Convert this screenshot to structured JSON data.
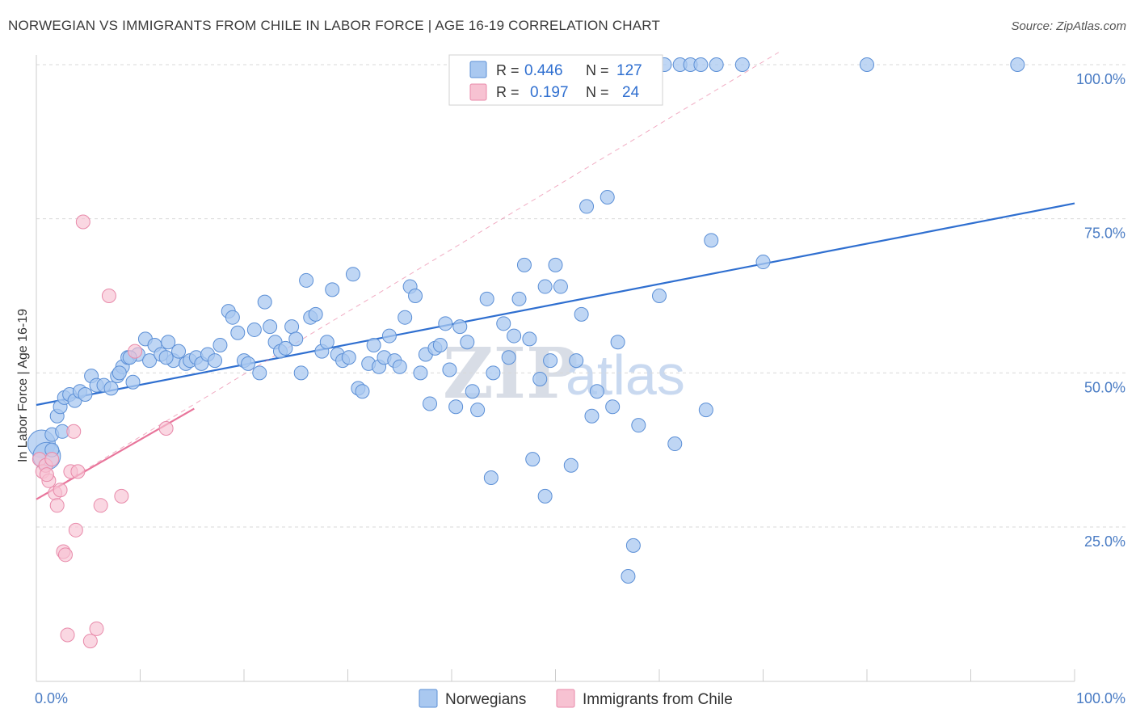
{
  "title": "NORWEGIAN VS IMMIGRANTS FROM CHILE IN LABOR FORCE | AGE 16-19 CORRELATION CHART",
  "source": "Source: ZipAtlas.com",
  "watermark": {
    "zip": "ZIP",
    "atlas": "atlas"
  },
  "colors": {
    "blue_fill": "#a9c8f0",
    "blue_stroke": "#5b8fd6",
    "blue_line": "#2f6fd0",
    "pink_fill": "#f7c2d2",
    "pink_stroke": "#e88aaa",
    "pink_line": "#e8759b",
    "grid": "#d9d9d9",
    "tick_text": "#4a7cc4"
  },
  "legend_box": {
    "rows": [
      {
        "r_label": "R =",
        "r_value": "0.446",
        "n_label": "N =",
        "n_value": "127",
        "color": "#a9c8f0"
      },
      {
        "r_label": "R =",
        "r_value": "0.197",
        "n_label": "N =",
        "n_value": "24",
        "color": "#f7c2d2"
      }
    ]
  },
  "bottom_legend": [
    {
      "label": "Norwegians",
      "color": "#a9c8f0"
    },
    {
      "label": "Immigrants from Chile",
      "color": "#f7c2d2"
    }
  ],
  "chart_data": {
    "type": "scatter",
    "title": "NORWEGIAN VS IMMIGRANTS FROM CHILE IN LABOR FORCE | AGE 16-19 CORRELATION CHART",
    "xlabel": "",
    "ylabel": "In Labor Force | Age 16-19",
    "xlim": [
      0,
      100
    ],
    "ylim": [
      0,
      102
    ],
    "x_tick_labels": [
      "0.0%",
      "100.0%"
    ],
    "y_ticks": [
      25,
      50,
      75,
      100
    ],
    "y_tick_labels": [
      "25.0%",
      "50.0%",
      "75.0%",
      "100.0%"
    ],
    "grid": true,
    "series": [
      {
        "name": "Norwegians",
        "R": 0.446,
        "N": 127,
        "trend": {
          "x0": 0,
          "y0": 44.8,
          "x1": 100,
          "y1": 77.5
        },
        "points": [
          [
            0.5,
            38.5
          ],
          [
            1,
            36.5
          ],
          [
            1.5,
            40
          ],
          [
            2,
            43
          ],
          [
            2.3,
            44.5
          ],
          [
            2.7,
            46
          ],
          [
            3.2,
            46.5
          ],
          [
            3.7,
            45.5
          ],
          [
            4.2,
            47
          ],
          [
            4.7,
            46.5
          ],
          [
            5.3,
            49.5
          ],
          [
            5.8,
            48
          ],
          [
            6.5,
            48
          ],
          [
            7.2,
            47.5
          ],
          [
            7.8,
            49.5
          ],
          [
            8.3,
            51
          ],
          [
            8.8,
            52.5
          ],
          [
            9.3,
            48.5
          ],
          [
            9.8,
            53
          ],
          [
            10.5,
            55.5
          ],
          [
            10.9,
            52
          ],
          [
            11.4,
            54.5
          ],
          [
            12,
            53
          ],
          [
            12.7,
            55
          ],
          [
            13.2,
            52
          ],
          [
            13.7,
            53.5
          ],
          [
            14.4,
            51.5
          ],
          [
            14.8,
            52
          ],
          [
            15.4,
            52.5
          ],
          [
            15.9,
            51.5
          ],
          [
            16.5,
            53
          ],
          [
            17.2,
            52
          ],
          [
            17.7,
            54.5
          ],
          [
            18.5,
            60
          ],
          [
            18.9,
            59
          ],
          [
            19.4,
            56.5
          ],
          [
            20,
            52
          ],
          [
            20.4,
            51.5
          ],
          [
            21,
            57
          ],
          [
            21.5,
            50
          ],
          [
            22,
            61.5
          ],
          [
            22.5,
            57.5
          ],
          [
            23,
            55
          ],
          [
            23.5,
            53.5
          ],
          [
            24,
            54
          ],
          [
            24.6,
            57.5
          ],
          [
            25,
            55.5
          ],
          [
            25.5,
            50
          ],
          [
            26,
            65
          ],
          [
            26.4,
            59
          ],
          [
            26.9,
            59.5
          ],
          [
            27.5,
            53.5
          ],
          [
            28,
            55
          ],
          [
            28.5,
            63.5
          ],
          [
            29,
            53
          ],
          [
            29.5,
            52
          ],
          [
            30.1,
            52.5
          ],
          [
            30.5,
            66
          ],
          [
            31,
            47.5
          ],
          [
            31.4,
            47
          ],
          [
            32,
            51.5
          ],
          [
            32.5,
            54.5
          ],
          [
            33,
            51
          ],
          [
            33.5,
            52.5
          ],
          [
            34,
            56
          ],
          [
            34.5,
            52
          ],
          [
            35,
            51
          ],
          [
            35.5,
            59
          ],
          [
            36,
            64
          ],
          [
            36.5,
            62.5
          ],
          [
            37,
            50
          ],
          [
            37.5,
            53
          ],
          [
            37.9,
            45
          ],
          [
            38.4,
            54
          ],
          [
            38.9,
            54.5
          ],
          [
            39.4,
            58
          ],
          [
            39.8,
            50.5
          ],
          [
            40.4,
            44.5
          ],
          [
            40.8,
            57.5
          ],
          [
            41.5,
            55
          ],
          [
            42,
            47
          ],
          [
            42.5,
            44
          ],
          [
            43.4,
            62
          ],
          [
            43.8,
            33
          ],
          [
            44,
            50
          ],
          [
            45,
            58
          ],
          [
            45.5,
            52.5
          ],
          [
            46,
            56
          ],
          [
            46.5,
            62
          ],
          [
            47,
            67.5
          ],
          [
            47.5,
            55.5
          ],
          [
            47.8,
            36
          ],
          [
            48.5,
            49
          ],
          [
            49,
            64
          ],
          [
            49.5,
            52
          ],
          [
            50,
            67.5
          ],
          [
            50.5,
            64
          ],
          [
            51.5,
            35
          ],
          [
            52,
            52
          ],
          [
            52.5,
            59.5
          ],
          [
            53,
            77
          ],
          [
            53.5,
            43
          ],
          [
            54,
            47
          ],
          [
            55,
            78.5
          ],
          [
            55.5,
            44.5
          ],
          [
            56,
            55
          ],
          [
            57,
            17
          ],
          [
            57.5,
            22
          ],
          [
            58,
            41.5
          ],
          [
            60,
            62.5
          ],
          [
            60.5,
            100
          ],
          [
            61.5,
            38.5
          ],
          [
            62,
            100
          ],
          [
            63,
            100
          ],
          [
            64,
            100
          ],
          [
            64.5,
            44
          ],
          [
            65,
            71.5
          ],
          [
            65.5,
            100
          ],
          [
            68,
            100
          ],
          [
            70,
            68
          ],
          [
            80,
            100
          ],
          [
            94.5,
            100
          ],
          [
            2.5,
            40.5
          ],
          [
            1.5,
            37.5
          ],
          [
            8,
            50
          ],
          [
            9,
            52.5
          ],
          [
            12.5,
            52.5
          ],
          [
            49,
            30
          ]
        ],
        "sizes_large": [
          [
            0.5,
            38.5
          ],
          [
            1,
            36.5
          ]
        ]
      },
      {
        "name": "Immigrants from Chile",
        "R": 0.197,
        "N": 24,
        "trend": {
          "x0": 0,
          "y0": 29.5,
          "x1": 15.2,
          "y1": 44.2
        },
        "trend_extended": {
          "x0": 0,
          "y0": 29.5,
          "x1": 71.5,
          "y1": 102
        },
        "points": [
          [
            0.3,
            36
          ],
          [
            0.6,
            34
          ],
          [
            0.9,
            35
          ],
          [
            1.2,
            32.5
          ],
          [
            1.5,
            36
          ],
          [
            1.8,
            30.5
          ],
          [
            2,
            28.5
          ],
          [
            2.3,
            31
          ],
          [
            2.6,
            21
          ],
          [
            2.8,
            20.5
          ],
          [
            3,
            7.5
          ],
          [
            3.3,
            34
          ],
          [
            3.6,
            40.5
          ],
          [
            3.8,
            24.5
          ],
          [
            4,
            34
          ],
          [
            4.5,
            74.5
          ],
          [
            5.2,
            6.5
          ],
          [
            5.8,
            8.5
          ],
          [
            6.2,
            28.5
          ],
          [
            7,
            62.5
          ],
          [
            8.2,
            30
          ],
          [
            9.5,
            53.5
          ],
          [
            12.5,
            41
          ],
          [
            1,
            33.5
          ]
        ]
      }
    ]
  }
}
